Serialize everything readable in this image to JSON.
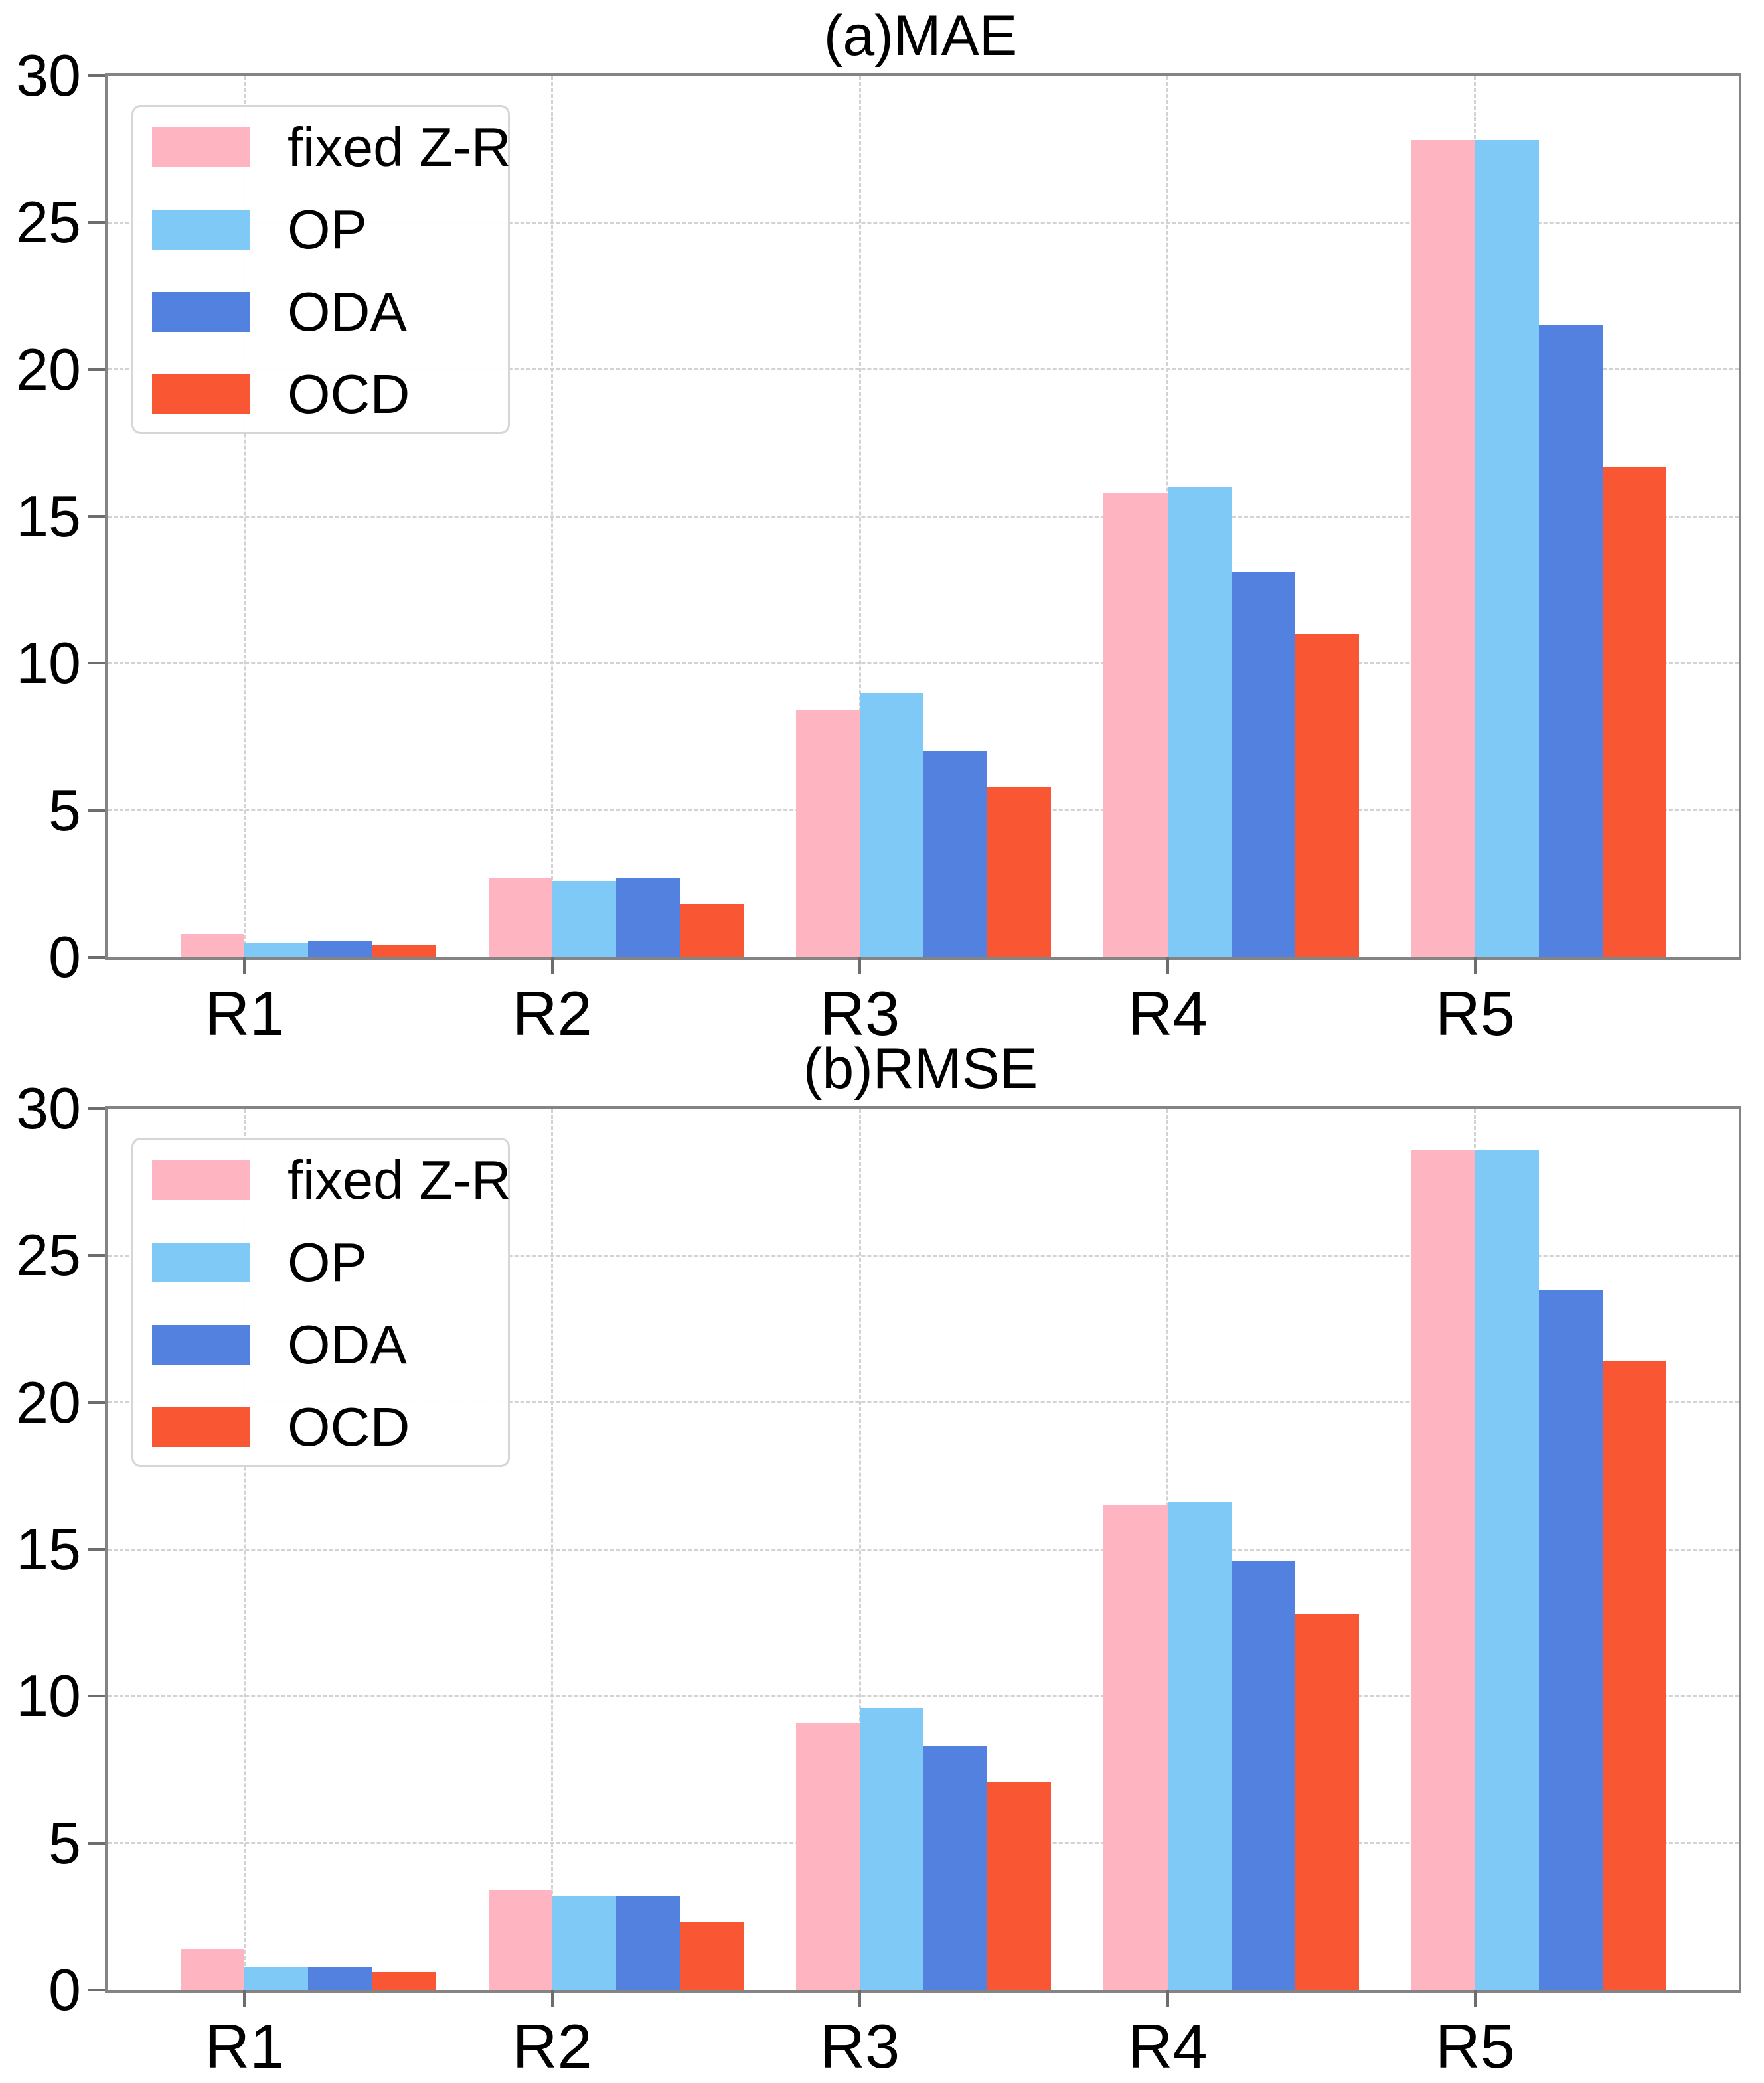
{
  "figure": {
    "background": "#ffffff",
    "panel_count": 2
  },
  "styles": {
    "spine_color": "#848484",
    "grid_color": "#d2d2d2",
    "tick_color": "#6d6d6d",
    "text_color": "#000000",
    "legend_border_color": "#d6d6d6",
    "legend_background": "#ffffff"
  },
  "series_colors": {
    "fixed_zr": "#ffb5c1",
    "op": "#7ec9f5",
    "oda": "#5281e0",
    "ocd": "#f95634"
  },
  "chart_data": [
    {
      "type": "bar",
      "title": "(a)MAE",
      "categories": [
        "R1",
        "R2",
        "R3",
        "R4",
        "R5"
      ],
      "series": [
        {
          "name": "fixed Z-R",
          "color": "#ffb5c1",
          "values": [
            0.8,
            2.7,
            8.4,
            15.8,
            27.8
          ]
        },
        {
          "name": "OP",
          "color": "#7ec9f5",
          "values": [
            0.5,
            2.6,
            9.0,
            16.0,
            27.8
          ]
        },
        {
          "name": "ODA",
          "color": "#5281e0",
          "values": [
            0.55,
            2.7,
            7.0,
            13.1,
            21.5
          ]
        },
        {
          "name": "OCD",
          "color": "#f95634",
          "values": [
            0.4,
            1.8,
            5.8,
            11.0,
            16.7
          ]
        }
      ],
      "xlabel": "",
      "ylabel": "",
      "ylim": [
        0,
        30
      ],
      "yticks": [
        0,
        5,
        10,
        15,
        20,
        25,
        30
      ],
      "grid": true,
      "legend": true,
      "legend_position": "upper-left"
    },
    {
      "type": "bar",
      "title": "(b)RMSE",
      "categories": [
        "R1",
        "R2",
        "R3",
        "R4",
        "R5"
      ],
      "series": [
        {
          "name": "fixed Z-R",
          "color": "#ffb5c1",
          "values": [
            1.4,
            3.4,
            9.1,
            16.5,
            28.6
          ]
        },
        {
          "name": "OP",
          "color": "#7ec9f5",
          "values": [
            0.8,
            3.2,
            9.6,
            16.6,
            28.6
          ]
        },
        {
          "name": "ODA",
          "color": "#5281e0",
          "values": [
            0.8,
            3.2,
            8.3,
            14.6,
            23.8
          ]
        },
        {
          "name": "OCD",
          "color": "#f95634",
          "values": [
            0.6,
            2.3,
            7.1,
            12.8,
            21.4
          ]
        }
      ],
      "xlabel": "",
      "ylabel": "",
      "ylim": [
        0,
        30
      ],
      "yticks": [
        0,
        5,
        10,
        15,
        20,
        25,
        30
      ],
      "grid": true,
      "legend": true,
      "legend_position": "upper-left"
    }
  ]
}
